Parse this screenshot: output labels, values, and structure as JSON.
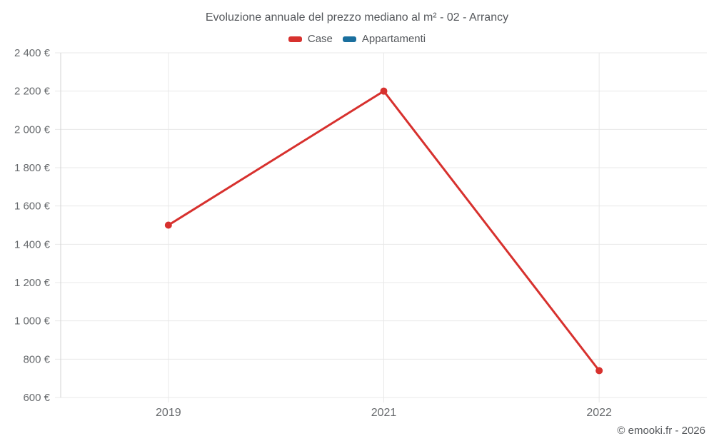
{
  "chart_data": {
    "type": "line",
    "title": "Evoluzione annuale del prezzo mediano al m² - 02 - Arrancy",
    "categories": [
      "2019",
      "2021",
      "2022"
    ],
    "series": [
      {
        "name": "Case",
        "color": "#d7312e",
        "values": [
          1500,
          2200,
          740
        ]
      },
      {
        "name": "Appartamenti",
        "color": "#1a6f9e",
        "values": []
      }
    ],
    "ylim": [
      600,
      2400
    ],
    "y_tick_step": 200,
    "y_tick_labels": [
      "600 €",
      "800 €",
      "1 000 €",
      "1 200 €",
      "1 400 €",
      "1 600 €",
      "1 800 €",
      "2 000 €",
      "2 200 €",
      "2 400 €"
    ],
    "grid": true,
    "legend_position": "top",
    "xlabel": "",
    "ylabel": ""
  },
  "footer": {
    "copyright": "© emooki.fr - 2026"
  },
  "colors": {
    "grid": "#e8e8e8",
    "axis": "#d3d3d3",
    "tick_text": "#66696c",
    "title_text": "#55585c"
  }
}
